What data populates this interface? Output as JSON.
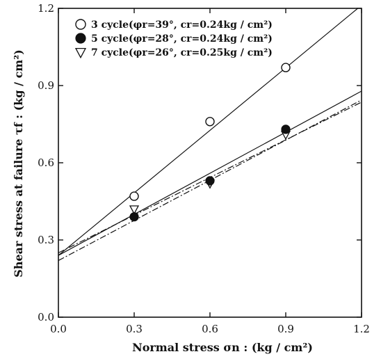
{
  "chart_data": {
    "type": "scatter",
    "xlabel": "Normal stress σn : (kg / cm²)",
    "ylabel": "Shear stress at failure τf : (kg / cm²)",
    "xlim": [
      0.0,
      1.2
    ],
    "ylim": [
      0.0,
      1.2
    ],
    "xticks": [
      "0.0",
      "0.3",
      "0.6",
      "0.9",
      "1.2"
    ],
    "yticks": [
      "0.0",
      "0.3",
      "0.6",
      "0.9",
      "1.2"
    ],
    "grid": false,
    "legend_position": "top-left",
    "series": [
      {
        "name": "3 cycle(φr=39°, cr=0.24kg / cm²)",
        "marker": "open-circle",
        "line": "solid",
        "x": [
          0.3,
          0.6,
          0.9
        ],
        "y": [
          0.47,
          0.76,
          0.97
        ],
        "fit": {
          "intercept": 0.24,
          "slope": 0.81
        }
      },
      {
        "name": "5 cycle(φr=28°, cr=0.24kg / cm²)",
        "marker": "filled-circle",
        "line": "solid",
        "x": [
          0.3,
          0.6,
          0.9
        ],
        "y": [
          0.39,
          0.53,
          0.73
        ],
        "fit": {
          "intercept": 0.24,
          "slope": 0.532
        }
      },
      {
        "name": "7 cycle(φr=26°, cr=0.25kg / cm²)",
        "marker": "open-triangle-down",
        "line": "dash-dot",
        "x": [
          0.3,
          0.6,
          0.9
        ],
        "y": [
          0.42,
          0.52,
          0.71
        ],
        "fit": {
          "intercept": 0.25,
          "slope": 0.488
        }
      }
    ],
    "extra_lines": [
      {
        "style": "dash-dot",
        "intercept": 0.22,
        "slope": 0.52
      }
    ]
  }
}
